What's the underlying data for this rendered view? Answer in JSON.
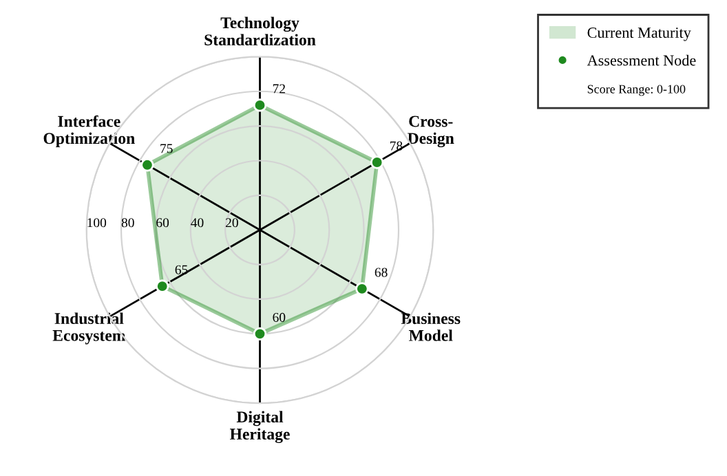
{
  "chart_data": {
    "type": "radar",
    "categories": [
      "Technology\nStandardization",
      "Cross-\nDesign",
      "Business\nModel",
      "Digital\nHeritage",
      "Industrial\nEcosystem",
      "Interface\nOptimization"
    ],
    "series": [
      {
        "name": "Current Maturity",
        "color": "#1f8a1f",
        "values": [
          72,
          78,
          68,
          60,
          65,
          75
        ]
      }
    ],
    "ylim": [
      0,
      100
    ],
    "yticks": [
      20,
      40,
      60,
      80,
      100
    ],
    "grid": true,
    "marker": "circle",
    "data_labels": true,
    "legend": "top right",
    "annotations": [
      "Assessment Node",
      "Score Range: 0-100"
    ]
  }
}
